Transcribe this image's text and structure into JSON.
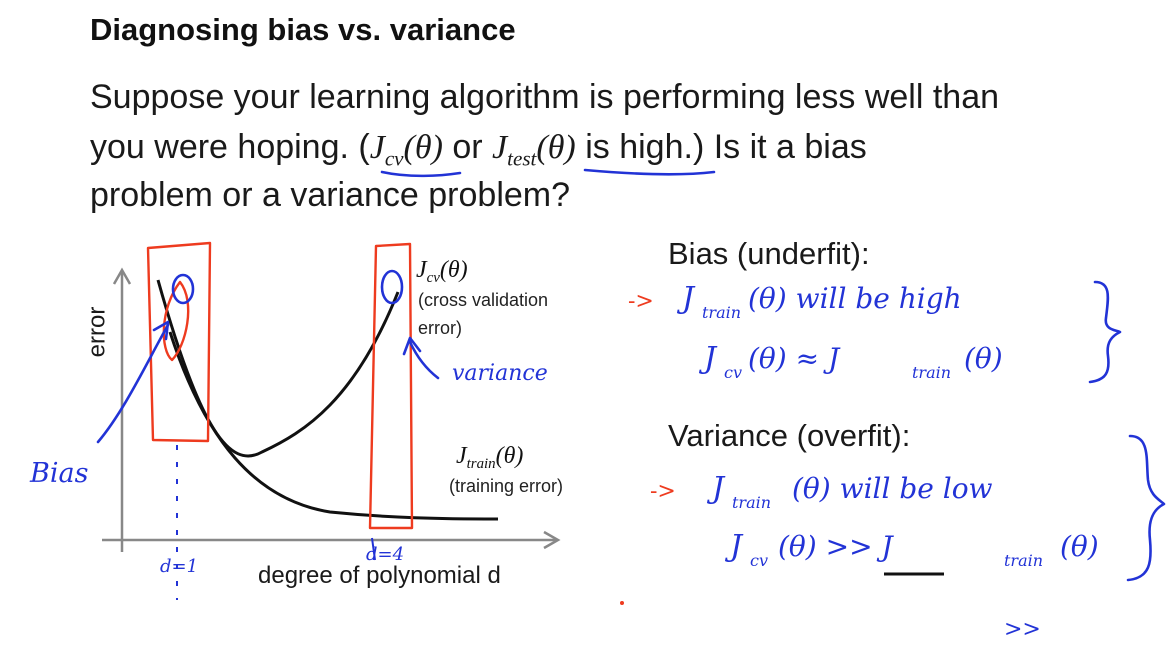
{
  "title": "Diagnosing bias vs. variance",
  "intro": {
    "line1": "Suppose your learning algorithm is performing less well than",
    "line2_a": "you were hoping. (",
    "jcv_J": "J",
    "jcv_sub": "cv",
    "jcv_arg": "(θ)",
    "or_word": " or ",
    "jtest_J": "J",
    "jtest_sub": "test",
    "jtest_arg": "(θ)",
    "line2_b": " is high.)  Is it a bias",
    "line3": "problem or a variance problem?"
  },
  "chart": {
    "ylabel": "error",
    "xlabel": "degree of polynomial d",
    "cv_label": {
      "J": "J",
      "sub": "cv",
      "arg": "(θ)",
      "note_1": "(cross validation",
      "note_2": "error)"
    },
    "train_label": {
      "J": "J",
      "sub": "train",
      "arg": "(θ)",
      "note": "(training error)"
    }
  },
  "chart_data": [
    {
      "type": "line",
      "xlabel": "degree of polynomial d",
      "ylabel": "error",
      "series": [
        {
          "name": "J_cv(θ) (cross validation error)",
          "shape": "U-shaped: high at low d, minimum at moderate d, high at large d"
        },
        {
          "name": "J_train(θ) (training error)",
          "shape": "decreasing with d, approaching a low plateau"
        }
      ]
    }
  ],
  "bias_section": {
    "heading": "Bias (underfit):",
    "line1": "J",
    "line1_sub": "train",
    "line1_rest": "(θ)  will be  high",
    "line2": "J",
    "line2_sub": "cv",
    "line2_mid": "(θ) ≈ J",
    "line2_sub2": "train",
    "line2_rest": "(θ)"
  },
  "variance_section": {
    "heading": "Variance (overfit):",
    "line1": "J",
    "line1_sub": "train",
    "line1_rest": "(θ)  will be  low",
    "line2": "J",
    "line2_sub": "cv",
    "line2_mid": "(θ)  >>  J",
    "line2_sub2": "train",
    "line2_rest": "(θ)"
  },
  "annotations": {
    "bias_word": "Bias",
    "variance_word": "variance",
    "d1": "d=1",
    "d4": "d=4",
    "arrow": "->",
    "much_greater": ">>"
  },
  "colors": {
    "ink_blue": "#2233d6",
    "ink_red": "#ee3b1f",
    "text": "#1a1a1a"
  }
}
